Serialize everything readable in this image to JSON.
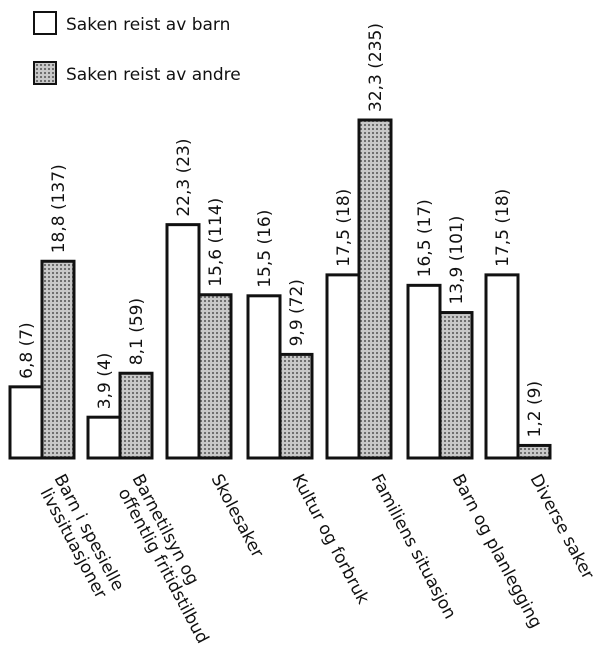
{
  "chart_data": {
    "type": "bar",
    "title": "",
    "xlabel": "",
    "ylabel": "",
    "categories": [
      [
        "Barn i spesielle",
        "livssituasjoner"
      ],
      [
        "Barnetilsyn og",
        "offentlig fritidstilbud"
      ],
      [
        "Skolesaker"
      ],
      [
        "Kultur og forbruk"
      ],
      [
        "Familiens situasjon"
      ],
      [
        "Barn og planlegging"
      ],
      [
        "Diverse saker"
      ]
    ],
    "series": [
      {
        "name": "Saken reist av barn",
        "fill": "#ffffff",
        "values": [
          6.8,
          3.9,
          22.3,
          15.5,
          17.5,
          16.5,
          17.5
        ],
        "labels": [
          "6,8 (7)",
          "3,9 (4)",
          "22,3 (23)",
          "15,5 (16)",
          "17,5 (18)",
          "16,5 (17)",
          "17,5 (18)"
        ]
      },
      {
        "name": "Saken reist av andre",
        "fill": "dotted-gray",
        "values": [
          18.8,
          8.1,
          15.6,
          9.9,
          32.3,
          13.9,
          1.2
        ],
        "labels": [
          "18,8 (137)",
          "8,1 (59)",
          "15,6 (114)",
          "9,9 (72)",
          "32,3 (235)",
          "13,9 (101)",
          "1,2 (9)"
        ]
      }
    ],
    "ylim": [
      0,
      32.3
    ],
    "grid": false,
    "legend": "top-left"
  }
}
